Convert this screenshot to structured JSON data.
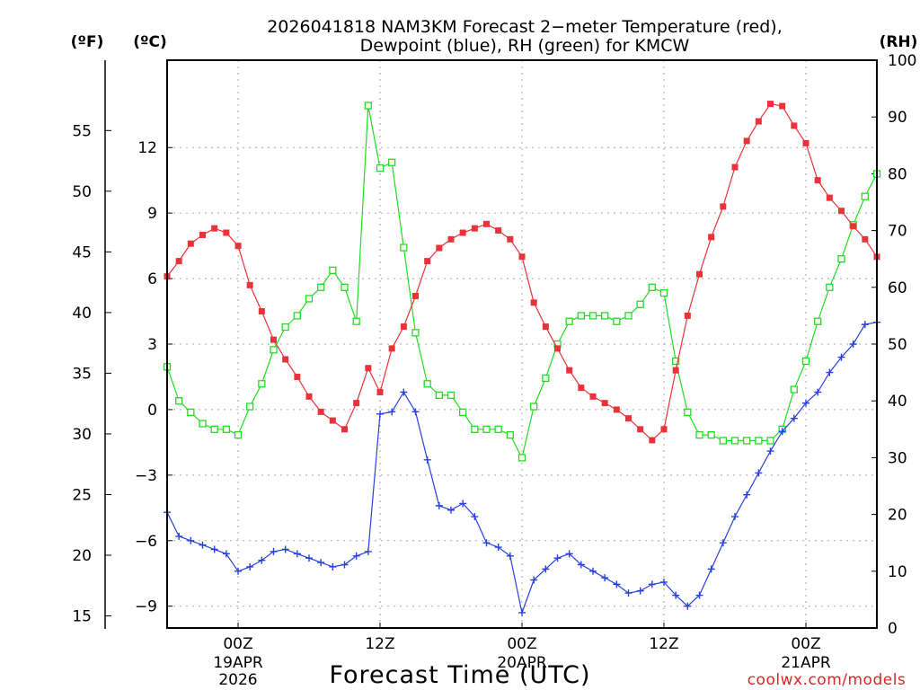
{
  "chart_data": {
    "type": "line",
    "title_line1": "2026041818 NAM3KM Forecast 2−meter Temperature (red),",
    "title_line2": "Dewpoint (blue), RH (green) for KMCW",
    "xlabel": "Forecast Time (UTC)",
    "watermark": "coolwx.com/models",
    "unit_f": "(ºF)",
    "unit_c": "(ºC)",
    "unit_rh": "(RH)",
    "x_range_hours": [
      0,
      60
    ],
    "x_ticks": [
      {
        "hour": 6,
        "label": "00Z",
        "sub": [
          "19APR",
          "2026"
        ]
      },
      {
        "hour": 18,
        "label": "12Z",
        "sub": []
      },
      {
        "hour": 30,
        "label": "00Z",
        "sub": [
          "20APR"
        ]
      },
      {
        "hour": 42,
        "label": "12Z",
        "sub": []
      },
      {
        "hour": 54,
        "label": "00Z",
        "sub": [
          "21APR"
        ]
      }
    ],
    "c_axis": {
      "ylim": [
        -10,
        16
      ],
      "ticks": [
        12,
        9,
        6,
        3,
        0,
        -3,
        -6,
        -9
      ],
      "tick_labels": [
        "12",
        "9",
        "6",
        "3",
        "0",
        "−3",
        "−6",
        "−9"
      ]
    },
    "f_axis": {
      "ticks": [
        55,
        50,
        45,
        40,
        35,
        30,
        25,
        20,
        15
      ],
      "tick_labels": [
        "55",
        "50",
        "45",
        "40",
        "35",
        "30",
        "25",
        "20",
        "15"
      ]
    },
    "rh_axis": {
      "ylim": [
        0,
        100
      ],
      "ticks": [
        100,
        90,
        80,
        70,
        60,
        50,
        40,
        30,
        20,
        10,
        0
      ],
      "tick_labels": [
        "100",
        "90",
        "80",
        "70",
        "60",
        "50",
        "40",
        "30",
        "20",
        "10",
        "0"
      ]
    },
    "hours": [
      0,
      1,
      2,
      3,
      4,
      5,
      6,
      7,
      8,
      9,
      10,
      11,
      12,
      13,
      14,
      15,
      16,
      17,
      18,
      19,
      20,
      21,
      22,
      23,
      24,
      25,
      26,
      27,
      28,
      29,
      30,
      31,
      32,
      33,
      34,
      35,
      36,
      37,
      38,
      39,
      40,
      41,
      42,
      43,
      44,
      45,
      46,
      47,
      48,
      49,
      50,
      51,
      52,
      53,
      54,
      55,
      56,
      57,
      58,
      59,
      60
    ],
    "series": [
      {
        "name": "2-meter Temperature",
        "axis": "celsius",
        "color": "#e8333a",
        "marker": "filled-square",
        "values": [
          6.1,
          6.8,
          7.6,
          8.0,
          8.3,
          8.1,
          7.5,
          5.7,
          4.5,
          3.2,
          2.3,
          1.5,
          0.6,
          -0.1,
          -0.5,
          -0.9,
          0.3,
          1.9,
          0.8,
          2.8,
          3.8,
          5.2,
          6.8,
          7.4,
          7.8,
          8.1,
          8.3,
          8.5,
          8.2,
          7.8,
          7.0,
          4.9,
          3.8,
          2.8,
          1.8,
          1.0,
          0.6,
          0.3,
          0.0,
          -0.4,
          -0.9,
          -1.4,
          -0.9,
          1.8,
          4.3,
          6.2,
          7.9,
          9.3,
          11.1,
          12.3,
          13.2,
          14.0,
          13.9,
          13.0,
          12.2,
          10.5,
          9.7,
          9.1,
          8.4,
          7.8,
          7.0
        ]
      },
      {
        "name": "Dewpoint",
        "axis": "celsius",
        "color": "#2840e0",
        "marker": "plus",
        "values": [
          -4.7,
          -5.8,
          -6.0,
          -6.2,
          -6.4,
          -6.6,
          -7.4,
          -7.2,
          -6.9,
          -6.5,
          -6.4,
          -6.6,
          -6.8,
          -7.0,
          -7.2,
          -7.1,
          -6.7,
          -6.5,
          -0.2,
          -0.1,
          0.8,
          -0.1,
          -2.3,
          -4.4,
          -4.6,
          -4.3,
          -4.9,
          -6.1,
          -6.3,
          -6.7,
          -9.3,
          -7.8,
          -7.3,
          -6.8,
          -6.6,
          -7.1,
          -7.4,
          -7.7,
          -8.0,
          -8.4,
          -8.3,
          -8.0,
          -7.9,
          -8.5,
          -9.0,
          -8.5,
          -7.3,
          -6.1,
          -4.9,
          -3.9,
          -2.9,
          -1.9,
          -1.0,
          -0.4,
          0.3,
          0.8,
          1.7,
          2.4,
          3.0,
          3.9,
          4.0
        ]
      },
      {
        "name": "RH",
        "axis": "rh",
        "color": "#22dd22",
        "marker": "open-square",
        "values": [
          46,
          40,
          38,
          36,
          35,
          35,
          34,
          39,
          43,
          49,
          53,
          55,
          58,
          60,
          63,
          60,
          54,
          92,
          81,
          82,
          67,
          52,
          43,
          41,
          41,
          38,
          35,
          35,
          35,
          34,
          30,
          39,
          44,
          50,
          54,
          55,
          55,
          55,
          54,
          55,
          57,
          60,
          59,
          47,
          38,
          34,
          34,
          33,
          33,
          33,
          33,
          33,
          35,
          42,
          47,
          54,
          60,
          65,
          71,
          76,
          80
        ]
      }
    ]
  }
}
